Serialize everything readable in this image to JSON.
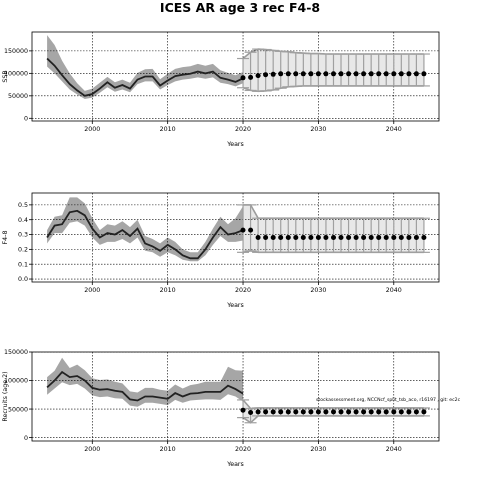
{
  "figure": {
    "title": "ICES AR age 3 rec F4-8",
    "footnote": "stockassessment.org, NCCNcf_split_tsb_aco, r16197 , git: ec2c"
  },
  "colors": {
    "median_line": "#222222",
    "band_fill": "#a6a6a6",
    "projection_band": "#bcbcbc",
    "points": "#000000",
    "grid": "#000000",
    "frame": "#000000"
  },
  "chart_data": [
    {
      "id": "ssb",
      "type": "line",
      "xlabel": "Years",
      "ylabel": "SSB",
      "xlim": [
        1992.0,
        2046.0
      ],
      "ylim": [
        -6000,
        192000
      ],
      "xticks": [
        2000,
        2010,
        2020,
        2030,
        2040
      ],
      "yticks": [
        0,
        50000,
        100000,
        150000
      ],
      "ytick_labels": [
        "0",
        "50000",
        "100000",
        "150000"
      ],
      "grid": true,
      "history": {
        "years": [
          1994,
          1995,
          1996,
          1997,
          1998,
          1999,
          2000,
          2001,
          2002,
          2003,
          2004,
          2005,
          2006,
          2007,
          2008,
          2009,
          2010,
          2011,
          2012,
          2013,
          2014,
          2015,
          2016,
          2017,
          2018,
          2019,
          2020
        ],
        "median": [
          133000,
          117000,
          96000,
          76000,
          62000,
          50000,
          54000,
          66000,
          80000,
          68000,
          74000,
          66000,
          86000,
          93000,
          93000,
          73000,
          84000,
          94000,
          97000,
          99000,
          104000,
          100000,
          104000,
          90000,
          86000,
          81000,
          89000
        ],
        "lower": [
          115000,
          100000,
          82000,
          64000,
          53000,
          43000,
          46000,
          57000,
          69000,
          59000,
          64000,
          58000,
          76000,
          82000,
          82000,
          64000,
          74000,
          82000,
          86000,
          88000,
          91000,
          88000,
          91000,
          79000,
          76000,
          71000,
          78000
        ],
        "upper": [
          185000,
          163000,
          128000,
          100000,
          78000,
          61000,
          66000,
          79000,
          92000,
          80000,
          86000,
          79000,
          101000,
          109000,
          110000,
          87000,
          99000,
          110000,
          114000,
          116000,
          121000,
          117000,
          121000,
          107000,
          101000,
          96000,
          103000
        ]
      },
      "projection": {
        "years": [
          2020,
          2021,
          2022,
          2023,
          2024,
          2025,
          2026,
          2027,
          2028,
          2029,
          2030,
          2031,
          2032,
          2033,
          2034,
          2035,
          2036,
          2037,
          2038,
          2039,
          2040,
          2041,
          2042,
          2043,
          2044
        ],
        "median": [
          90000,
          91000,
          95000,
          97000,
          98000,
          99000,
          99000,
          99000,
          99000,
          99000,
          99000,
          99000,
          99000,
          99000,
          99000,
          99000,
          99000,
          99000,
          99000,
          99000,
          99000,
          99000,
          99000,
          99000,
          99000
        ],
        "lower": [
          68000,
          62000,
          60000,
          61000,
          63000,
          67000,
          70000,
          71000,
          72000,
          72000,
          72000,
          72000,
          72000,
          72000,
          72000,
          72000,
          72000,
          72000,
          72000,
          72000,
          72000,
          72000,
          72000,
          72000,
          72000
        ],
        "upper": [
          133000,
          147000,
          154000,
          153000,
          151000,
          149000,
          148000,
          146000,
          145000,
          144000,
          144000,
          143000,
          143000,
          143000,
          143000,
          143000,
          143000,
          143000,
          143000,
          143000,
          143000,
          143000,
          143000,
          143000,
          143000
        ]
      }
    },
    {
      "id": "f",
      "type": "line",
      "xlabel": "Years",
      "ylabel": "F4-8",
      "xlim": [
        1992.0,
        2046.0
      ],
      "ylim": [
        -0.02,
        0.58
      ],
      "xticks": [
        2000,
        2010,
        2020,
        2030,
        2040
      ],
      "yticks": [
        0.0,
        0.1,
        0.2,
        0.3,
        0.4,
        0.5
      ],
      "ytick_labels": [
        "0.0",
        "0.1",
        "0.2",
        "0.3",
        "0.4",
        "0.5"
      ],
      "grid": true,
      "history": {
        "years": [
          1994,
          1995,
          1996,
          1997,
          1998,
          1999,
          2000,
          2001,
          2002,
          2003,
          2004,
          2005,
          2006,
          2007,
          2008,
          2009,
          2010,
          2011,
          2012,
          2013,
          2014,
          2015,
          2016,
          2017,
          2018,
          2019,
          2020
        ],
        "median": [
          0.28,
          0.36,
          0.37,
          0.45,
          0.46,
          0.43,
          0.34,
          0.28,
          0.31,
          0.3,
          0.33,
          0.29,
          0.34,
          0.24,
          0.22,
          0.19,
          0.23,
          0.2,
          0.16,
          0.14,
          0.14,
          0.2,
          0.28,
          0.35,
          0.3,
          0.31,
          0.33
        ],
        "lower": [
          0.24,
          0.31,
          0.31,
          0.38,
          0.39,
          0.36,
          0.28,
          0.23,
          0.25,
          0.25,
          0.27,
          0.24,
          0.28,
          0.19,
          0.18,
          0.15,
          0.18,
          0.16,
          0.13,
          0.12,
          0.12,
          0.16,
          0.23,
          0.29,
          0.25,
          0.25,
          0.26
        ],
        "upper": [
          0.33,
          0.42,
          0.43,
          0.55,
          0.55,
          0.51,
          0.41,
          0.33,
          0.37,
          0.36,
          0.39,
          0.35,
          0.4,
          0.29,
          0.27,
          0.24,
          0.28,
          0.25,
          0.2,
          0.18,
          0.18,
          0.25,
          0.34,
          0.42,
          0.37,
          0.41,
          0.49
        ]
      },
      "projection": {
        "years": [
          2020,
          2021,
          2022,
          2023,
          2024,
          2025,
          2026,
          2027,
          2028,
          2029,
          2030,
          2031,
          2032,
          2033,
          2034,
          2035,
          2036,
          2037,
          2038,
          2039,
          2040,
          2041,
          2042,
          2043,
          2044
        ],
        "median": [
          0.33,
          0.33,
          0.28,
          0.28,
          0.28,
          0.28,
          0.28,
          0.28,
          0.28,
          0.28,
          0.28,
          0.28,
          0.28,
          0.28,
          0.28,
          0.28,
          0.28,
          0.28,
          0.28,
          0.28,
          0.28,
          0.28,
          0.28,
          0.28,
          0.28
        ],
        "lower": [
          0.18,
          0.19,
          0.18,
          0.18,
          0.18,
          0.18,
          0.18,
          0.18,
          0.18,
          0.18,
          0.18,
          0.18,
          0.18,
          0.18,
          0.18,
          0.18,
          0.18,
          0.18,
          0.18,
          0.18,
          0.18,
          0.18,
          0.18,
          0.18,
          0.18
        ],
        "upper": [
          0.5,
          0.5,
          0.41,
          0.41,
          0.41,
          0.41,
          0.41,
          0.41,
          0.41,
          0.41,
          0.41,
          0.41,
          0.41,
          0.41,
          0.41,
          0.41,
          0.41,
          0.41,
          0.41,
          0.41,
          0.41,
          0.41,
          0.41,
          0.41,
          0.41
        ]
      }
    },
    {
      "id": "rec",
      "type": "line",
      "xlabel": "Years",
      "ylabel": "Recruits (age 2)",
      "xlim": [
        1992.0,
        2046.0
      ],
      "ylim": [
        -6000,
        150000
      ],
      "xticks": [
        2000,
        2010,
        2020,
        2030,
        2040
      ],
      "yticks": [
        0,
        50000,
        100000,
        150000
      ],
      "ytick_labels": [
        "0",
        "50000",
        "100000",
        "150000"
      ],
      "grid": true,
      "history": {
        "years": [
          1994,
          1995,
          1996,
          1997,
          1998,
          1999,
          2000,
          2001,
          2002,
          2003,
          2004,
          2005,
          2006,
          2007,
          2008,
          2009,
          2010,
          2011,
          2012,
          2013,
          2014,
          2015,
          2016,
          2017,
          2018,
          2019,
          2020
        ],
        "median": [
          88000,
          100000,
          115000,
          106000,
          108000,
          100000,
          87000,
          84000,
          85000,
          82000,
          80000,
          67000,
          65000,
          72000,
          72000,
          70000,
          68000,
          78000,
          72000,
          77000,
          78000,
          80000,
          80000,
          80000,
          91000,
          85000,
          77000
        ],
        "lower": [
          75000,
          86000,
          97000,
          92000,
          94000,
          86000,
          74000,
          71000,
          72000,
          69000,
          68000,
          56000,
          54000,
          61000,
          61000,
          59000,
          57000,
          66000,
          61000,
          65000,
          66000,
          67000,
          67000,
          66000,
          76000,
          72000,
          63000
        ],
        "upper": [
          106000,
          117000,
          140000,
          122000,
          128000,
          118000,
          104000,
          101000,
          102000,
          98000,
          95000,
          81000,
          79000,
          87000,
          87000,
          84000,
          82000,
          93000,
          86000,
          92000,
          94000,
          98000,
          98000,
          98000,
          124000,
          118000,
          117000
        ]
      },
      "projection": {
        "years": [
          2020,
          2021,
          2022,
          2023,
          2024,
          2025,
          2026,
          2027,
          2028,
          2029,
          2030,
          2031,
          2032,
          2033,
          2034,
          2035,
          2036,
          2037,
          2038,
          2039,
          2040,
          2041,
          2042,
          2043,
          2044
        ],
        "median": [
          48000,
          44000,
          45000,
          45000,
          45000,
          45000,
          45000,
          45000,
          45000,
          45000,
          45000,
          45000,
          45000,
          45000,
          45000,
          45000,
          45000,
          45000,
          45000,
          45000,
          45000,
          45000,
          45000,
          45000,
          45000
        ],
        "lower": [
          35000,
          26000,
          38000,
          38000,
          38000,
          38000,
          38000,
          38000,
          38000,
          38000,
          38000,
          38000,
          38000,
          38000,
          38000,
          38000,
          38000,
          38000,
          38000,
          38000,
          38000,
          38000,
          38000,
          38000,
          38000
        ],
        "upper": [
          66000,
          51000,
          52000,
          52000,
          52000,
          52000,
          52000,
          52000,
          52000,
          52000,
          52000,
          52000,
          52000,
          52000,
          52000,
          52000,
          52000,
          52000,
          52000,
          52000,
          52000,
          52000,
          52000,
          52000,
          52000
        ]
      }
    }
  ]
}
